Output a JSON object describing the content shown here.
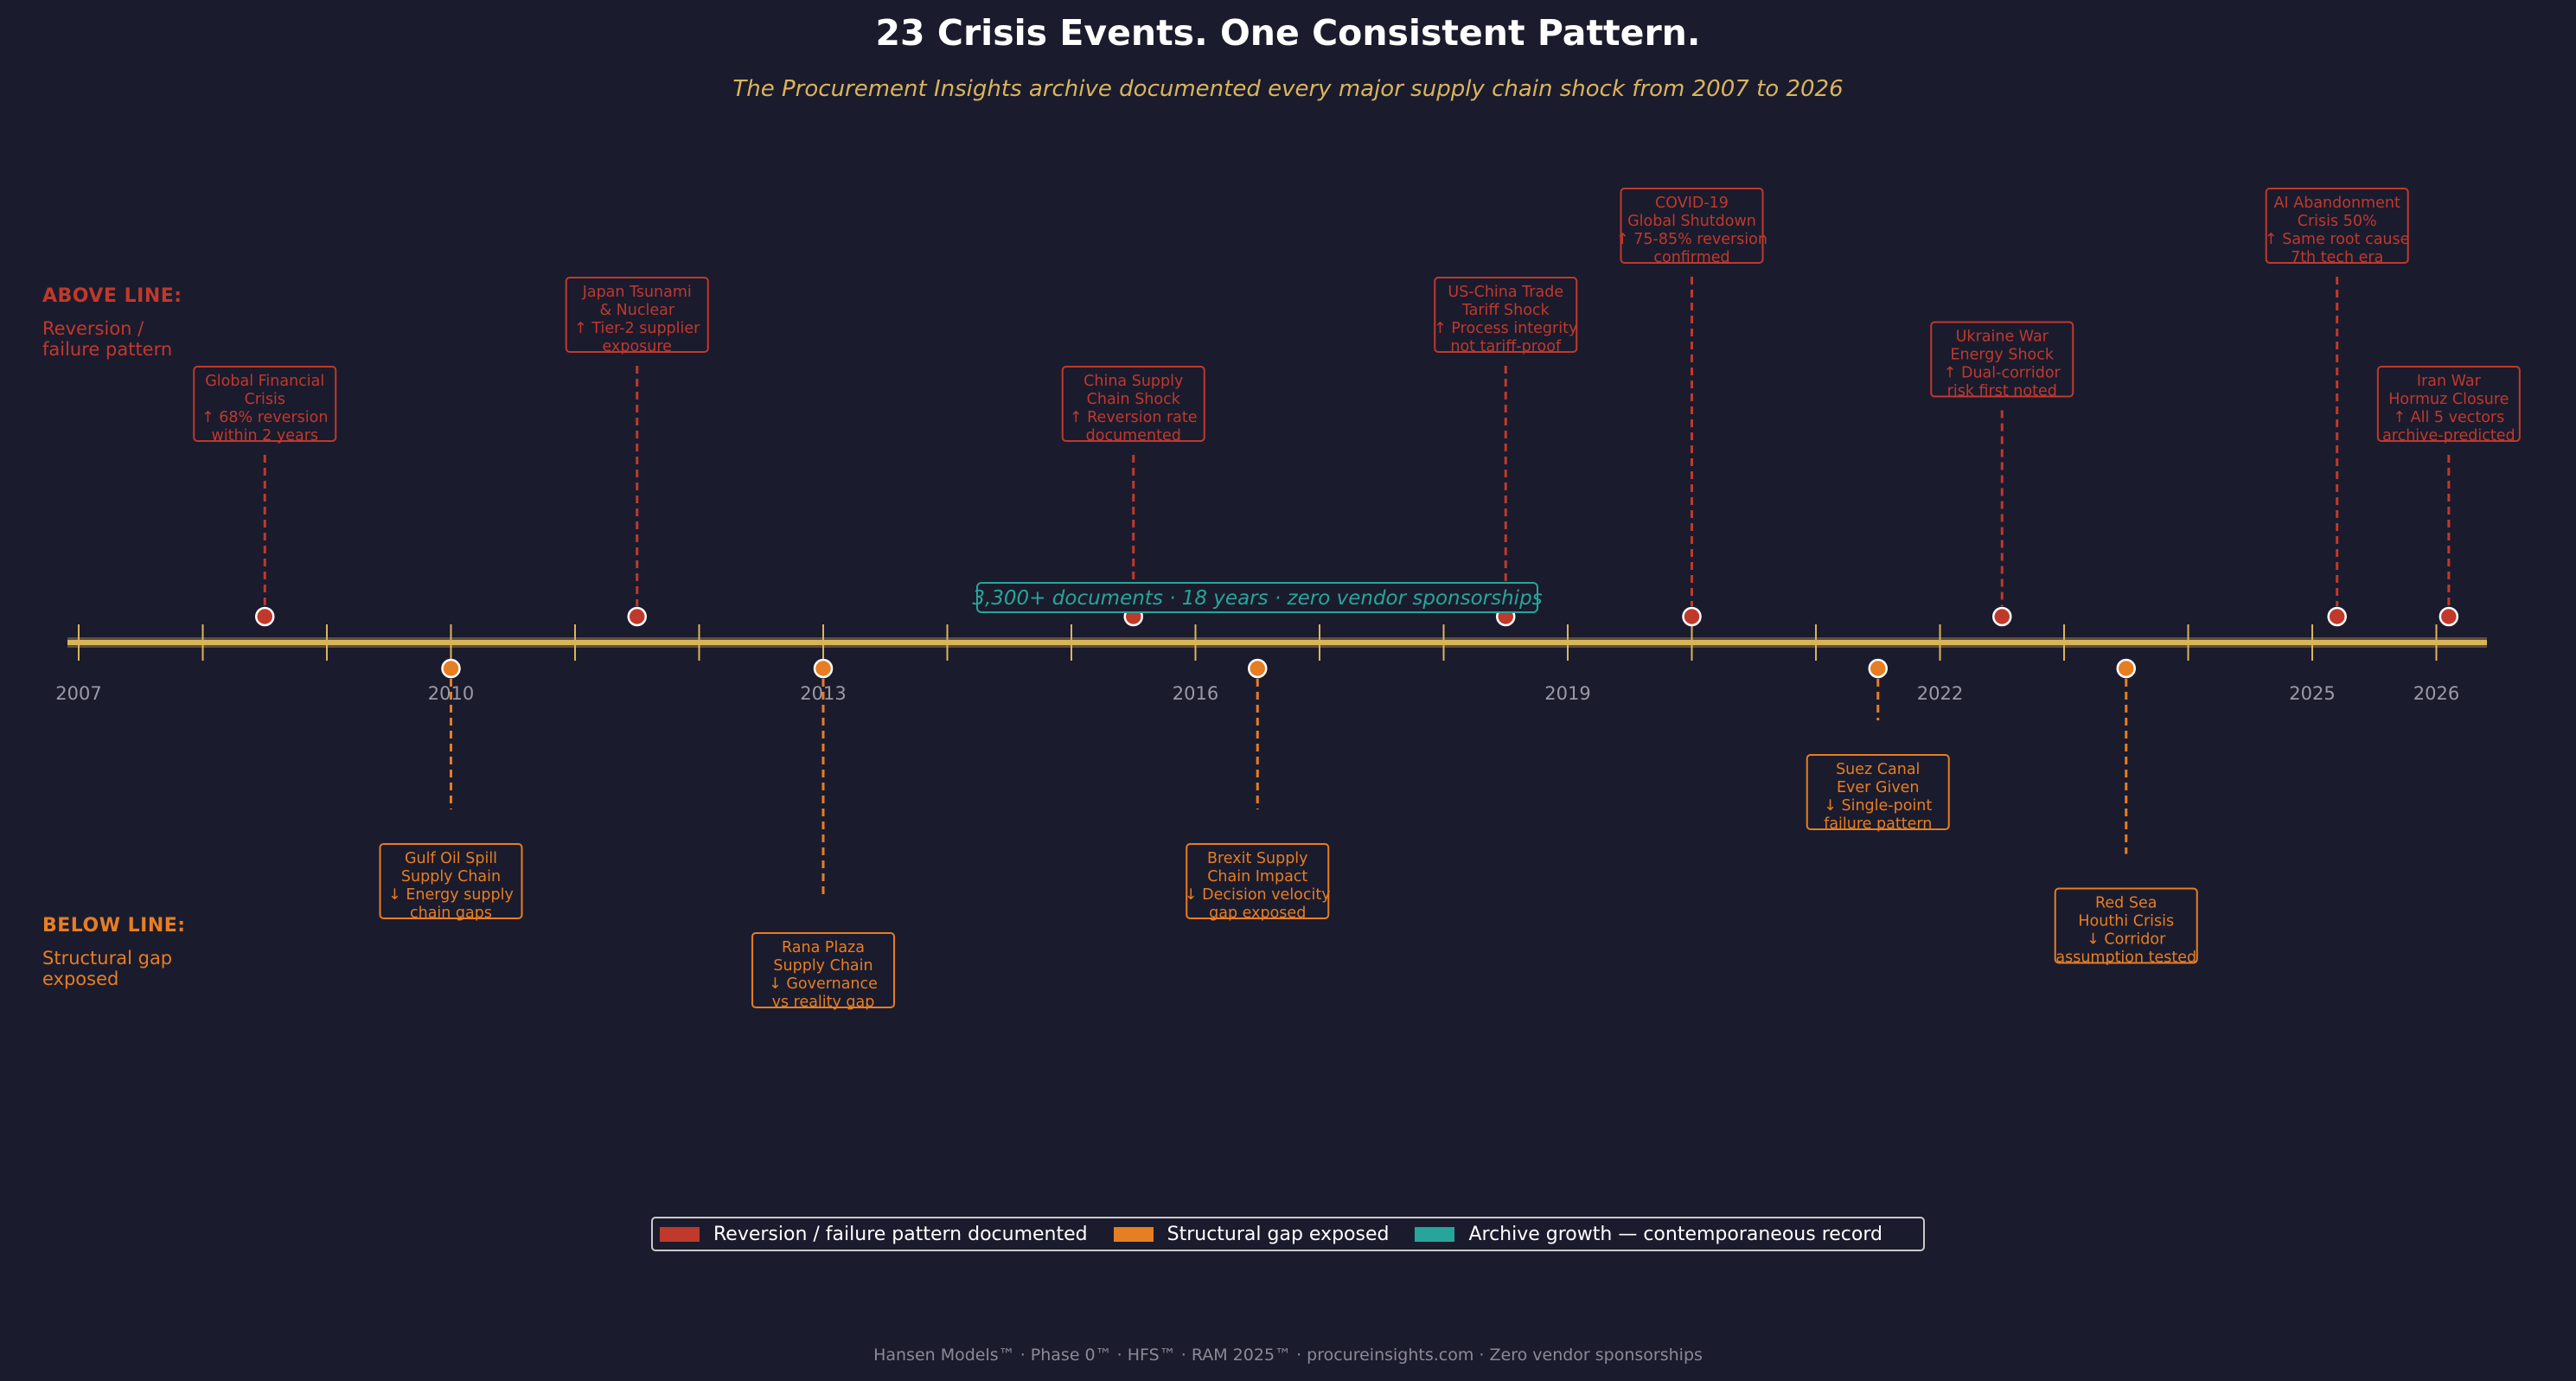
{
  "title": "23 Crisis Events. One Consistent Pattern.",
  "subtitle": "The Procurement Insights archive documented every major supply chain shock from 2007 to 2026",
  "above_line": {
    "heading": "ABOVE LINE:",
    "description": [
      "Reversion /",
      "failure pattern"
    ]
  },
  "below_line": {
    "heading": "BELOW LINE:",
    "description": [
      "Structural gap",
      "exposed"
    ]
  },
  "archive_note": "3,300+ documents · 18 years · zero vendor sponsorships",
  "timeline": {
    "start_year": 2007,
    "end_year": 2026.5,
    "year_labels": [
      "2007",
      "2010",
      "2013",
      "2016",
      "2019",
      "2022",
      "2025",
      "2026"
    ],
    "tick_years": [
      2007,
      2008,
      2009,
      2010,
      2011,
      2012,
      2013,
      2014,
      2015,
      2016,
      2017,
      2018,
      2019,
      2020,
      2021,
      2022,
      2023,
      2024,
      2025,
      2026
    ]
  },
  "colors": {
    "background": "#1b1b2e",
    "above": "#c0392b",
    "below": "#e67e22",
    "archive": "#26a69a",
    "axis": "#d9b55a"
  },
  "events": [
    {
      "year": 2008.5,
      "side": "above",
      "level": 1,
      "lines": [
        "Global Financial",
        "Crisis",
        "↑ 68% reversion",
        "within 2 years"
      ]
    },
    {
      "year": 2010.0,
      "side": "below",
      "level": 1,
      "lines": [
        "Gulf Oil Spill",
        "Supply Chain",
        "↓ Energy supply",
        "chain gaps"
      ]
    },
    {
      "year": 2011.5,
      "side": "above",
      "level": 2,
      "lines": [
        "Japan Tsunami",
        "& Nuclear",
        "↑ Tier-2 supplier",
        "exposure"
      ]
    },
    {
      "year": 2013.0,
      "side": "below",
      "level": 2,
      "lines": [
        "Rana Plaza",
        "Supply Chain",
        "↓ Governance",
        "vs reality gap"
      ]
    },
    {
      "year": 2015.5,
      "side": "above",
      "level": 1,
      "lines": [
        "China Supply",
        "Chain Shock",
        "↑ Reversion rate",
        "documented"
      ]
    },
    {
      "year": 2016.5,
      "side": "below",
      "level": 1,
      "lines": [
        "Brexit Supply",
        "Chain Impact",
        "↓ Decision velocity",
        "gap exposed"
      ]
    },
    {
      "year": 2018.5,
      "side": "above",
      "level": 2,
      "lines": [
        "US-China Trade",
        "Tariff Shock",
        "↑ Process integrity",
        "not tariff-proof"
      ]
    },
    {
      "year": 2020.0,
      "side": "above",
      "level": 3,
      "lines": [
        "COVID-19",
        "Global Shutdown",
        "↑ 75-85% reversion",
        "confirmed"
      ]
    },
    {
      "year": 2021.5,
      "side": "below",
      "level": 0,
      "lines": [
        "Suez Canal",
        "Ever Given",
        "↓ Single-point",
        "failure pattern"
      ]
    },
    {
      "year": 2022.5,
      "side": "above",
      "level": 1.5,
      "lines": [
        "Ukraine War",
        "Energy Shock",
        "↑ Dual-corridor",
        "risk first noted"
      ]
    },
    {
      "year": 2023.5,
      "side": "below",
      "level": 1.5,
      "lines": [
        "Red Sea",
        "Houthi Crisis",
        "↓ Corridor",
        "assumption tested"
      ]
    },
    {
      "year": 2025.2,
      "side": "above",
      "level": 3,
      "lines": [
        "AI Abandonment",
        "Crisis 50%",
        "↑ Same root cause",
        "7th tech era"
      ]
    },
    {
      "year": 2026.1,
      "side": "above",
      "level": 1,
      "lines": [
        "Iran War",
        "Hormuz Closure",
        "↑ All 5 vectors",
        "archive-predicted"
      ]
    }
  ],
  "legend": [
    {
      "label": "Reversion / failure pattern documented",
      "color": "#c0392b"
    },
    {
      "label": "Structural gap exposed",
      "color": "#e67e22"
    },
    {
      "label": "Archive growth — contemporaneous record",
      "color": "#26a69a"
    }
  ],
  "footer": "Hansen Models™  ·  Phase 0™  ·  HFS™  ·  RAM 2025™  ·  procureinsights.com  ·  Zero vendor sponsorships"
}
